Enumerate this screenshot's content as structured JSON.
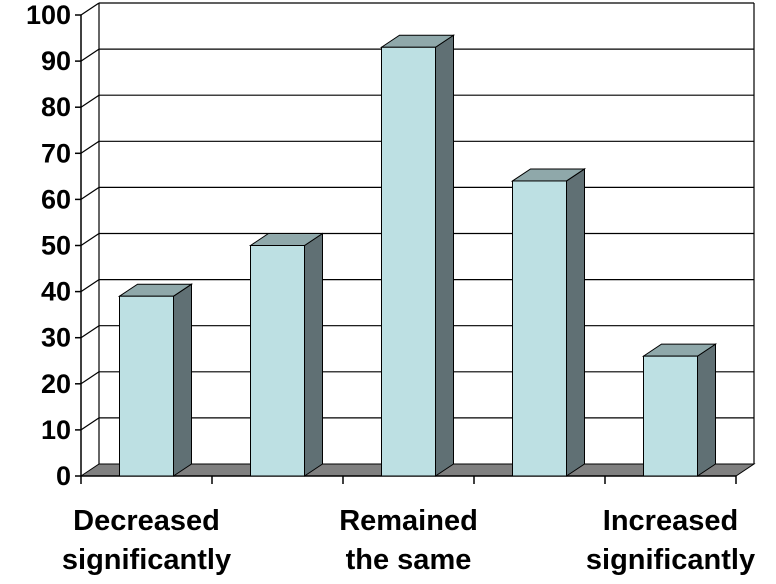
{
  "chart_data": {
    "type": "bar",
    "categories": [
      "Decreased significantly",
      "",
      "Remained the same",
      "",
      "Increased significantly"
    ],
    "category_label_lines": [
      [
        "Decreased",
        "significantly"
      ],
      [],
      [
        "Remained",
        "the same"
      ],
      [],
      [
        "Increased",
        "significantly"
      ]
    ],
    "values": [
      39,
      50,
      93,
      64,
      26
    ],
    "ylim": [
      0,
      100
    ],
    "yticks": [
      0,
      10,
      20,
      30,
      40,
      50,
      60,
      70,
      80,
      90,
      100
    ],
    "grid": true,
    "legend": "none",
    "title": "",
    "xlabel": "",
    "ylabel": "",
    "colors": {
      "bar_front": "#bde0e3",
      "bar_side": "#607074",
      "bar_top": "#8fa8aa",
      "floor": "#808080",
      "grid": "#000000"
    }
  }
}
